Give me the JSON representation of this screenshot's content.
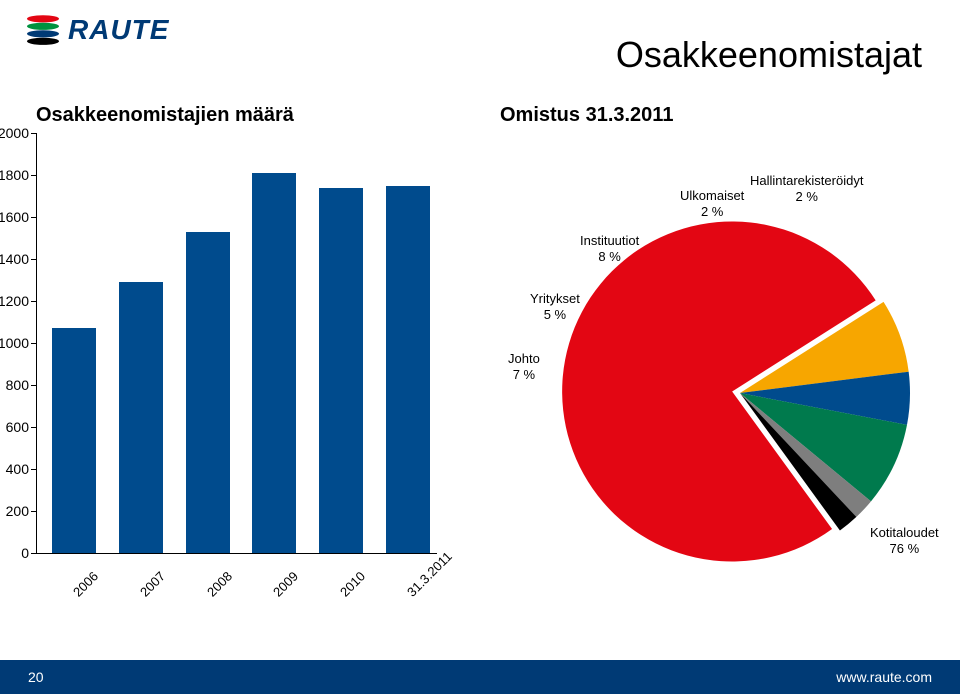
{
  "brand": {
    "name": "RAUTE",
    "text_color": "#003a75",
    "stripes": [
      "#e30613",
      "#00923f",
      "#003a75",
      "#000000"
    ]
  },
  "page_title": "Osakkeenomistajat",
  "title_fontsize": 36,
  "footer": {
    "page_number": "20",
    "url": "www.raute.com",
    "bg_color": "#003a75",
    "text_color": "#ffffff"
  },
  "bar_chart": {
    "title": "Osakkeenomistajien määrä",
    "categories": [
      "2006",
      "2007",
      "2008",
      "2009",
      "2010",
      "31.3.2011"
    ],
    "values": [
      1070,
      1290,
      1530,
      1810,
      1740,
      1750
    ],
    "bar_color": "#004b8d",
    "ymin": 0,
    "ymax": 2000,
    "ytick_step": 200,
    "axis_color": "#000000",
    "label_fontsize": 14
  },
  "pie_chart": {
    "title": "Omistus 31.3.2011",
    "slices": [
      {
        "label": "Kotitaloudet",
        "pct": 76,
        "color": "#e30613"
      },
      {
        "label": "Johto",
        "pct": 7,
        "color": "#f7a600"
      },
      {
        "label": "Yritykset",
        "pct": 5,
        "color": "#004b8d"
      },
      {
        "label": "Instituutiot",
        "pct": 8,
        "color": "#007a4d"
      },
      {
        "label": "Ulkomaiset",
        "pct": 2,
        "color": "#7e7e7e"
      },
      {
        "label": "Hallintarekisteröidyt",
        "pct": 2,
        "color": "#000000"
      }
    ],
    "start_angle_deg": 54,
    "explode_first": 8,
    "radius": 170,
    "label_fontsize": 13
  }
}
